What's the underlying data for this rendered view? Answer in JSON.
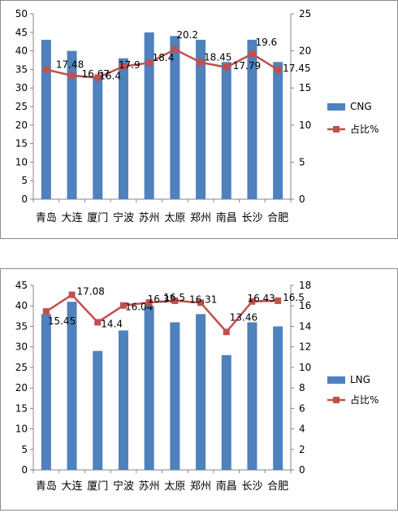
{
  "chart_data": [
    {
      "type": "bar",
      "categories": [
        "青岛",
        "大连",
        "厦门",
        "宁波",
        "苏州",
        "太原",
        "郑州",
        "南昌",
        "长沙",
        "合肥"
      ],
      "series": [
        {
          "name": "CNG",
          "type": "bar",
          "axis": "left",
          "color": "#4F81BD",
          "values": [
            43,
            40,
            33,
            38,
            45,
            44,
            43,
            37,
            43,
            37
          ]
        },
        {
          "name": "占比%",
          "type": "line",
          "axis": "right",
          "color": "#C0504D",
          "marker": "square",
          "values": [
            17.48,
            16.67,
            16.4,
            17.9,
            18.4,
            20.2,
            18.45,
            17.79,
            19.6,
            17.45
          ],
          "labels": [
            "17.48",
            "16.67",
            "16.4",
            "17.9",
            "18.4",
            "20.2",
            "18.45",
            "17.79",
            "19.6",
            "17.45"
          ]
        }
      ],
      "ylim": [
        0,
        50
      ],
      "yticks": [
        0,
        5,
        10,
        15,
        20,
        25,
        30,
        35,
        40,
        45,
        50
      ],
      "y2lim": [
        0,
        25
      ],
      "y2ticks": [
        0,
        5,
        10,
        15,
        20,
        25
      ],
      "legend_position": "right",
      "grid": false
    },
    {
      "type": "bar",
      "categories": [
        "青岛",
        "大连",
        "厦门",
        "宁波",
        "苏州",
        "太原",
        "郑州",
        "南昌",
        "长沙",
        "合肥"
      ],
      "series": [
        {
          "name": "LNG",
          "type": "bar",
          "axis": "left",
          "color": "#4F81BD",
          "values": [
            38,
            41,
            29,
            34,
            40,
            36,
            38,
            28,
            36,
            35
          ]
        },
        {
          "name": "占比%",
          "type": "line",
          "axis": "right",
          "color": "#C0504D",
          "marker": "square",
          "values": [
            15.45,
            17.08,
            14.4,
            16.04,
            16.33,
            16.5,
            16.31,
            13.46,
            16.43,
            16.5
          ],
          "labels": [
            "15.45",
            "17.08",
            "14.4",
            "16.04",
            "16.33",
            "16.5",
            "16.31",
            "13.46",
            "16.43",
            "16.5"
          ]
        }
      ],
      "ylim": [
        0,
        45
      ],
      "yticks": [
        0,
        5,
        10,
        15,
        20,
        25,
        30,
        35,
        40,
        45
      ],
      "y2lim": [
        0,
        18
      ],
      "y2ticks": [
        0,
        2,
        4,
        6,
        8,
        10,
        12,
        14,
        16,
        18
      ],
      "legend_position": "right",
      "grid": false
    }
  ]
}
